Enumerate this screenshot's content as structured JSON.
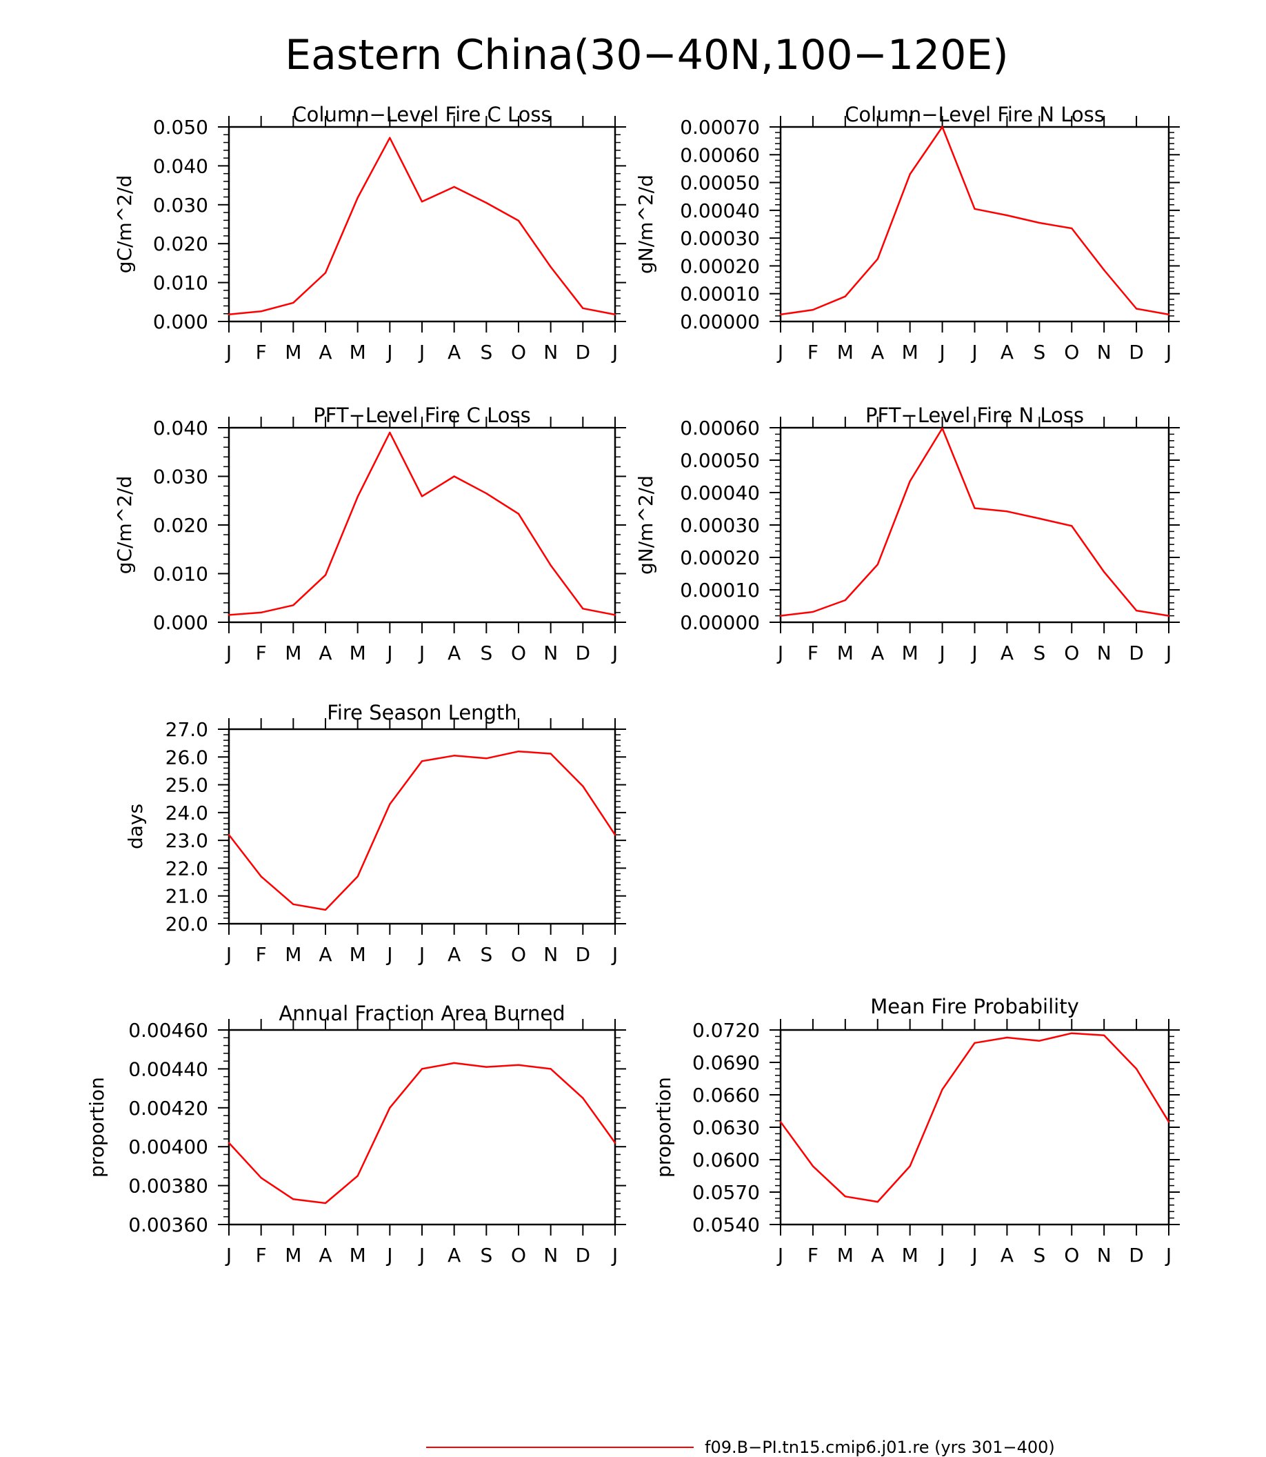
{
  "figure_title": "Eastern China(30−40N,100−120E)",
  "months": [
    "J",
    "F",
    "M",
    "A",
    "M",
    "J",
    "J",
    "A",
    "S",
    "O",
    "N",
    "D",
    "J"
  ],
  "line_color": "#ff0000",
  "legend": {
    "label": "f09.B−PI.tn15.cmip6.j01.re (yrs 301−400)",
    "color": "#ff0000"
  },
  "chart_data": [
    {
      "type": "line",
      "title": "Column−Level Fire C Loss",
      "ylabel": "gC/m^2/d",
      "ylim": [
        0,
        0.05
      ],
      "yticks": [
        "0.000",
        "0.010",
        "0.020",
        "0.030",
        "0.040",
        "0.050"
      ],
      "x": [
        "J",
        "F",
        "M",
        "A",
        "M",
        "J",
        "J",
        "A",
        "S",
        "O",
        "N",
        "D",
        "J"
      ],
      "values": [
        0.0018,
        0.0026,
        0.0048,
        0.0125,
        0.0318,
        0.0472,
        0.0308,
        0.0346,
        0.0305,
        0.0259,
        0.014,
        0.0034,
        0.0018
      ]
    },
    {
      "type": "line",
      "title": "Column−Level Fire N Loss",
      "ylabel": "gN/m^2/d",
      "ylim": [
        0,
        0.0007
      ],
      "yticks": [
        "0.00000",
        "0.00010",
        "0.00020",
        "0.00030",
        "0.00040",
        "0.00050",
        "0.00060",
        "0.00070"
      ],
      "x": [
        "J",
        "F",
        "M",
        "A",
        "M",
        "J",
        "J",
        "A",
        "S",
        "O",
        "N",
        "D",
        "J"
      ],
      "values": [
        2.5e-05,
        4.2e-05,
        9e-05,
        0.000225,
        0.00053,
        0.0007,
        0.000405,
        0.000382,
        0.000355,
        0.000335,
        0.000185,
        4.6e-05,
        2.5e-05
      ]
    },
    {
      "type": "line",
      "title": "PFT−Level Fire C Loss",
      "ylabel": "gC/m^2/d",
      "ylim": [
        0,
        0.04
      ],
      "yticks": [
        "0.000",
        "0.010",
        "0.020",
        "0.030",
        "0.040"
      ],
      "x": [
        "J",
        "F",
        "M",
        "A",
        "M",
        "J",
        "J",
        "A",
        "S",
        "O",
        "N",
        "D",
        "J"
      ],
      "values": [
        0.0015,
        0.002,
        0.0035,
        0.0097,
        0.0258,
        0.039,
        0.0259,
        0.03,
        0.0265,
        0.0223,
        0.0117,
        0.0028,
        0.0015
      ]
    },
    {
      "type": "line",
      "title": "PFT−Level Fire N Loss",
      "ylabel": "gN/m^2/d",
      "ylim": [
        0,
        0.0006
      ],
      "yticks": [
        "0.00000",
        "0.00010",
        "0.00020",
        "0.00030",
        "0.00040",
        "0.00050",
        "0.00060"
      ],
      "x": [
        "J",
        "F",
        "M",
        "A",
        "M",
        "J",
        "J",
        "A",
        "S",
        "O",
        "N",
        "D",
        "J"
      ],
      "values": [
        2e-05,
        3.2e-05,
        6.8e-05,
        0.000178,
        0.000435,
        0.000598,
        0.000352,
        0.000342,
        0.00032,
        0.000297,
        0.000155,
        3.6e-05,
        2e-05
      ]
    },
    {
      "type": "line",
      "title": "Fire Season Length",
      "ylabel": "days",
      "ylim": [
        20,
        27
      ],
      "yticks": [
        "20.0",
        "21.0",
        "22.0",
        "23.0",
        "24.0",
        "25.0",
        "26.0",
        "27.0"
      ],
      "x": [
        "J",
        "F",
        "M",
        "A",
        "M",
        "J",
        "J",
        "A",
        "S",
        "O",
        "N",
        "D",
        "J"
      ],
      "values": [
        23.2,
        21.7,
        20.7,
        20.5,
        21.7,
        24.3,
        25.85,
        26.05,
        25.95,
        26.2,
        26.12,
        24.95,
        23.2
      ]
    },
    {
      "type": "line",
      "title": "Annual Fraction Area Burned",
      "ylabel": "proportion",
      "ylim": [
        0.0036,
        0.0046
      ],
      "yticks": [
        "0.00360",
        "0.00380",
        "0.00400",
        "0.00420",
        "0.00440",
        "0.00460"
      ],
      "x": [
        "J",
        "F",
        "M",
        "A",
        "M",
        "J",
        "J",
        "A",
        "S",
        "O",
        "N",
        "D",
        "J"
      ],
      "values": [
        0.00402,
        0.00384,
        0.00373,
        0.00371,
        0.00385,
        0.0042,
        0.0044,
        0.00443,
        0.00441,
        0.00442,
        0.0044,
        0.00425,
        0.00402
      ]
    },
    {
      "type": "line",
      "title": "Mean Fire Probability",
      "ylabel": "proportion",
      "ylim": [
        0.054,
        0.072
      ],
      "yticks": [
        "0.0540",
        "0.0570",
        "0.0600",
        "0.0630",
        "0.0660",
        "0.0690",
        "0.0720"
      ],
      "x": [
        "J",
        "F",
        "M",
        "A",
        "M",
        "J",
        "J",
        "A",
        "S",
        "O",
        "N",
        "D",
        "J"
      ],
      "values": [
        0.0635,
        0.0594,
        0.0566,
        0.0561,
        0.0594,
        0.0665,
        0.0708,
        0.0713,
        0.071,
        0.0717,
        0.0715,
        0.0684,
        0.0635
      ]
    }
  ]
}
